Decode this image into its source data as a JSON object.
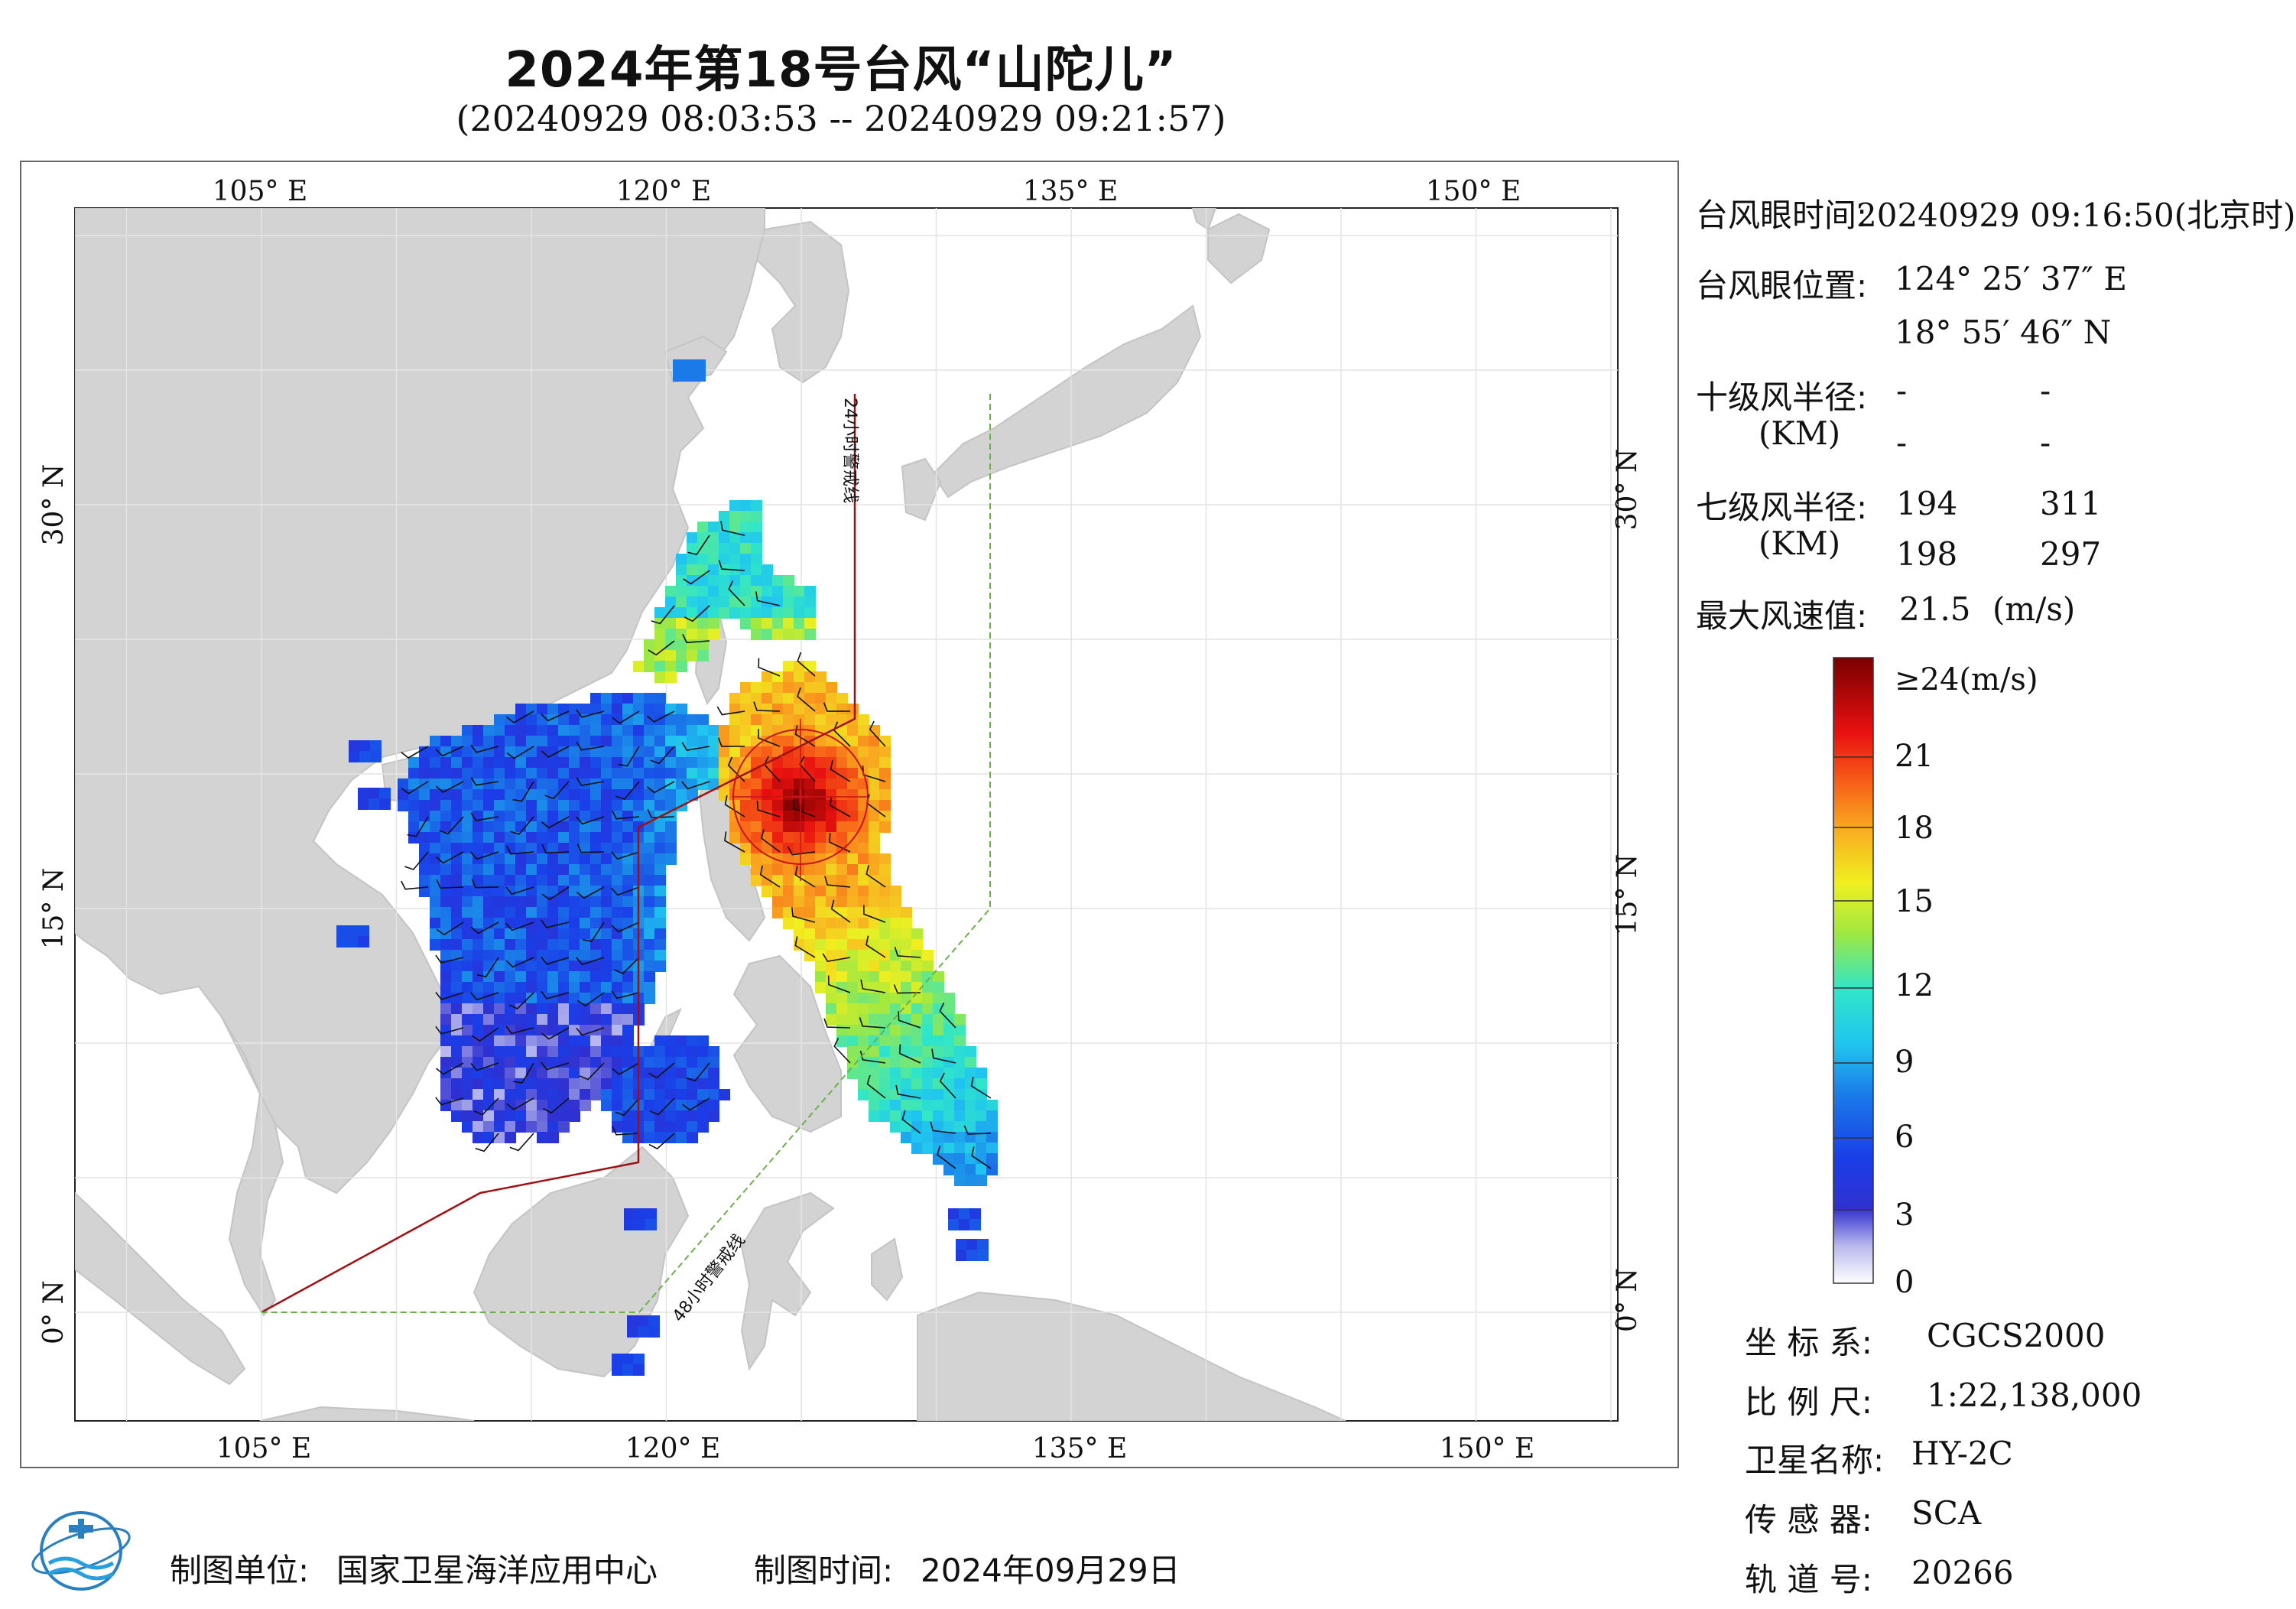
{
  "title": "2024年第18号台风“山陀儿”",
  "subtitle": "(20240929 08:03:53 -- 20240929 09:21:57)",
  "map": {
    "lon_labels": [
      "105° E",
      "120° E",
      "135° E",
      "150° E"
    ],
    "lat_labels": [
      "30° N",
      "15° N",
      "0° N"
    ],
    "warning_line_24h": "24小时警戒线",
    "warning_line_48h": "48小时警戒线",
    "colors": {
      "land": "#d3d3d3",
      "sea": "#ffffff",
      "warning_24h": "#a01010",
      "warning_48h": "#6ab04c",
      "wind_circle": "#c81414"
    }
  },
  "info": {
    "eye_time_label": "台风眼时间:",
    "eye_time_value": "20240929 09:16:50(北京时)",
    "eye_pos_label": "台风眼位置:",
    "eye_lon": "124° 25′ 37″ E",
    "eye_lat": "18° 55′ 46″ N",
    "r10_label": "十级风半径:",
    "r10_unit": "(KM)",
    "r10_values": [
      "-",
      "-",
      "-",
      "-"
    ],
    "r7_label": "七级风半径:",
    "r7_unit": "(KM)",
    "r7_values": [
      "194",
      "311",
      "198",
      "297"
    ],
    "max_wind_label": "最大风速值:",
    "max_wind_value": "21.5",
    "max_wind_unit": "(m/s)"
  },
  "colorbar": {
    "top_label": "≥24(m/s)",
    "ticks": [
      "21",
      "18",
      "15",
      "12",
      "9",
      "6",
      "3",
      "0"
    ]
  },
  "meta": {
    "crs_label": "坐 标 系:",
    "crs_value": "CGCS2000",
    "scale_label": "比 例 尺:",
    "scale_value": "1:22,138,000",
    "satellite_label": "卫星名称:",
    "satellite_value": "HY-2C",
    "sensor_label": "传 感 器:",
    "sensor_value": "SCA",
    "orbit_label": "轨 道 号:",
    "orbit_value": "20266"
  },
  "footer": {
    "producer_label": "制图单位:",
    "producer_value": "国家卫星海洋应用中心",
    "date_label": "制图时间:",
    "date_value": "2024年09月29日"
  }
}
